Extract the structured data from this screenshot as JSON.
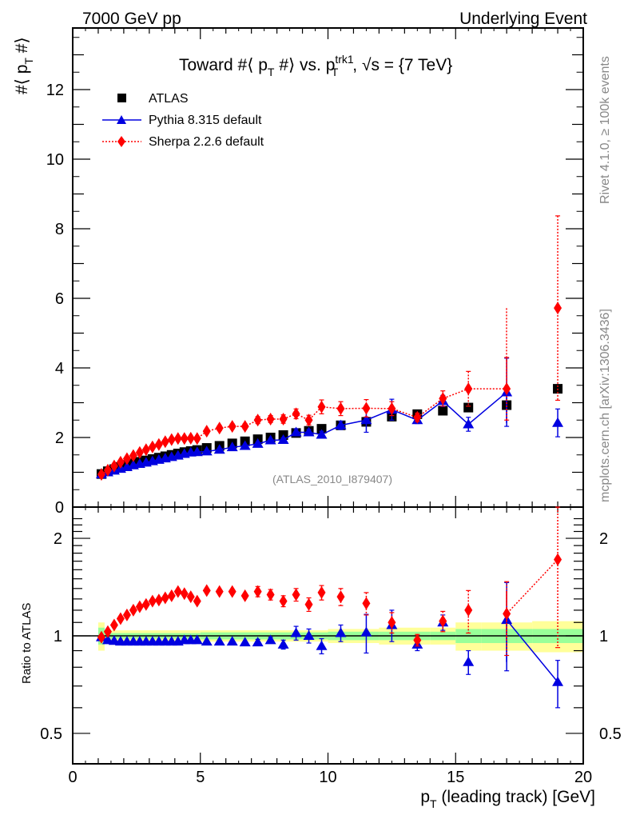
{
  "header": {
    "left": "7000 GeV pp",
    "right": "Underlying Event"
  },
  "side_text": {
    "rivet": "Rivet 4.1.0, ≥ 100k events",
    "mcplots": "mcplots.cern.ch [arXiv:1306.3436]"
  },
  "chart_data": [
    {
      "type": "scatter",
      "panel": "main",
      "title": "Toward #⟨ p_T #⟩ vs. p_T^trk1, √s = {7 TeV}",
      "title_parts": {
        "a": "Toward #⟨ p",
        "a_sub": "T",
        "b": " #⟩ vs. p",
        "b_sup": "trk1",
        "b_sub": "T",
        "c": ", √s = {7 TeV}"
      },
      "ylabel": "#⟨ p_T #⟩",
      "ylabel_parts": {
        "a": "#⟨ p",
        "sub": "T",
        "b": " #⟩"
      },
      "xlim": [
        0,
        20
      ],
      "ylim": [
        0,
        13.8
      ],
      "yticks": [
        0,
        2,
        4,
        6,
        8,
        10,
        12
      ],
      "watermark": "(ATLAS_2010_I879407)",
      "legend": {
        "placement": "top-left",
        "entries": [
          "ATLAS",
          "Pythia 8.315 default",
          "Sherpa 2.2.6 default"
        ]
      },
      "x": [
        1.125,
        1.375,
        1.625,
        1.875,
        2.125,
        2.375,
        2.625,
        2.875,
        3.125,
        3.375,
        3.625,
        3.875,
        4.125,
        4.375,
        4.625,
        4.875,
        5.25,
        5.75,
        6.25,
        6.75,
        7.25,
        7.75,
        8.25,
        8.75,
        9.25,
        9.75,
        10.5,
        11.5,
        12.5,
        13.5,
        14.5,
        15.5,
        17.0,
        19.0
      ],
      "series": [
        {
          "name": "ATLAS",
          "color": "#000000",
          "marker": "square",
          "values": [
            0.95,
            1.03,
            1.09,
            1.15,
            1.21,
            1.26,
            1.3,
            1.34,
            1.38,
            1.42,
            1.46,
            1.5,
            1.54,
            1.58,
            1.61,
            1.64,
            1.7,
            1.76,
            1.83,
            1.89,
            1.95,
            2.0,
            2.07,
            2.13,
            2.19,
            2.25,
            2.35,
            2.45,
            2.6,
            2.67,
            2.77,
            2.86,
            2.93,
            3.4
          ],
          "errors": [
            0,
            0,
            0,
            0,
            0,
            0,
            0,
            0,
            0,
            0,
            0,
            0,
            0,
            0,
            0,
            0,
            0,
            0,
            0,
            0,
            0,
            0,
            0,
            0,
            0,
            0,
            0,
            0,
            0,
            0,
            0,
            0,
            0,
            0
          ]
        },
        {
          "name": "Pythia 8.315 default",
          "color": "#0000e0",
          "marker": "triangle",
          "values": [
            0.94,
            1.0,
            1.05,
            1.1,
            1.15,
            1.2,
            1.24,
            1.28,
            1.32,
            1.36,
            1.4,
            1.44,
            1.48,
            1.53,
            1.57,
            1.58,
            1.6,
            1.65,
            1.72,
            1.76,
            1.82,
            1.92,
            1.93,
            2.15,
            2.15,
            2.08,
            2.35,
            2.5,
            2.8,
            2.5,
            3.05,
            2.38,
            3.3,
            2.42
          ],
          "errors": [
            0,
            0,
            0,
            0,
            0,
            0,
            0,
            0,
            0,
            0,
            0,
            0,
            0,
            0,
            0,
            0,
            0,
            0,
            0,
            0,
            0.04,
            0.04,
            0.06,
            0.1,
            0.08,
            0.1,
            0.12,
            0.35,
            0.3,
            0.1,
            0.16,
            0.2,
            0.98,
            0.4
          ]
        },
        {
          "name": "Sherpa 2.2.6 default",
          "color": "#ff0000",
          "marker": "diamond",
          "values": [
            0.94,
            1.06,
            1.18,
            1.29,
            1.39,
            1.48,
            1.57,
            1.65,
            1.73,
            1.8,
            1.88,
            1.94,
            1.97,
            1.97,
            1.98,
            1.97,
            2.18,
            2.27,
            2.32,
            2.32,
            2.5,
            2.53,
            2.53,
            2.68,
            2.5,
            2.88,
            2.83,
            2.84,
            2.83,
            2.58,
            3.12,
            3.4,
            3.4,
            5.72
          ],
          "errors": [
            0,
            0,
            0,
            0,
            0,
            0,
            0,
            0,
            0,
            0,
            0,
            0,
            0,
            0,
            0,
            0,
            0.06,
            0.07,
            0.07,
            0.07,
            0.1,
            0.1,
            0.12,
            0.14,
            0.14,
            0.2,
            0.2,
            0.25,
            0.2,
            0.12,
            0.22,
            0.5,
            0.9,
            2.65
          ]
        }
      ]
    },
    {
      "type": "scatter",
      "panel": "ratio",
      "ylabel": "Ratio to ATLAS",
      "xlabel": "p_T (leading track) [GeV]",
      "xlabel_parts": {
        "a": "p",
        "sub": "T",
        "b": " (leading track) [GeV]"
      },
      "xlim": [
        0,
        20
      ],
      "ylim": [
        0.38,
        2.35
      ],
      "yscale": "log",
      "yticks": [
        0.5,
        1,
        2
      ],
      "xticks": [
        0,
        5,
        10,
        15,
        20
      ],
      "reference_line": 1,
      "bands": {
        "edges": [
          1.0,
          1.25,
          5.0,
          10.0,
          12.0,
          14.0,
          15.0,
          16.0,
          18.0,
          20.0
        ],
        "inner": [
          0.06,
          0.02,
          0.025,
          0.03,
          0.03,
          0.03,
          0.05,
          0.05,
          0.05
        ],
        "outer": [
          0.1,
          0.04,
          0.04,
          0.05,
          0.06,
          0.06,
          0.1,
          0.1,
          0.11
        ]
      },
      "series": [
        {
          "name": "Pythia 8.315 default",
          "color": "#0000e0",
          "marker": "triangle",
          "values": [
            0.99,
            0.97,
            0.965,
            0.96,
            0.96,
            0.96,
            0.96,
            0.96,
            0.96,
            0.96,
            0.96,
            0.96,
            0.96,
            0.97,
            0.97,
            0.97,
            0.96,
            0.96,
            0.96,
            0.955,
            0.955,
            0.97,
            0.94,
            1.02,
            1.0,
            0.93,
            1.02,
            1.025,
            1.08,
            0.94,
            1.1,
            0.83,
            1.12,
            0.72
          ],
          "errors": [
            0,
            0,
            0,
            0,
            0,
            0,
            0,
            0,
            0,
            0,
            0,
            0,
            0,
            0,
            0,
            0,
            0,
            0,
            0,
            0,
            0.02,
            0.02,
            0.03,
            0.05,
            0.05,
            0.05,
            0.06,
            0.14,
            0.12,
            0.04,
            0.06,
            0.07,
            0.34,
            0.12
          ]
        },
        {
          "name": "Sherpa 2.2.6 default",
          "color": "#ff0000",
          "marker": "diamond",
          "values": [
            0.99,
            1.03,
            1.08,
            1.13,
            1.16,
            1.2,
            1.23,
            1.25,
            1.28,
            1.29,
            1.31,
            1.33,
            1.37,
            1.35,
            1.32,
            1.28,
            1.38,
            1.37,
            1.37,
            1.33,
            1.37,
            1.34,
            1.28,
            1.34,
            1.25,
            1.36,
            1.32,
            1.26,
            1.1,
            0.97,
            1.11,
            1.2,
            1.17,
            1.72
          ],
          "errors": [
            0,
            0,
            0,
            0,
            0,
            0,
            0,
            0,
            0,
            0,
            0,
            0,
            0,
            0,
            0,
            0,
            0,
            0,
            0,
            0,
            0.05,
            0.05,
            0.05,
            0.06,
            0.06,
            0.07,
            0.08,
            0.1,
            0.08,
            0.04,
            0.08,
            0.18,
            0.3,
            0.8
          ]
        }
      ]
    }
  ]
}
